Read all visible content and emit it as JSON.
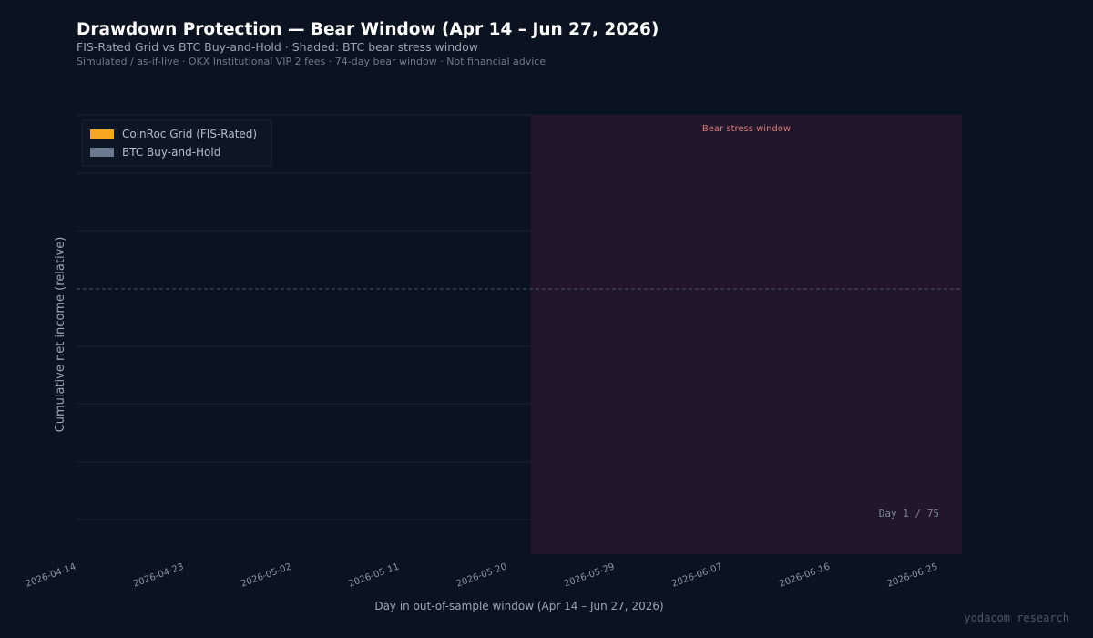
{
  "header": {
    "title": "Drawdown Protection — Bear Window  (Apr 14 – Jun 27, 2026)",
    "subtitle": "FIS-Rated Grid vs BTC Buy-and-Hold  ·  Shaded: BTC bear stress window",
    "note": "Simulated / as-if-live  ·  OKX Institutional VIP 2 fees  ·  74-day bear window  ·  Not financial advice"
  },
  "watermark": "yodacom research",
  "chart_data": {
    "type": "line",
    "xlabel": "Day in out-of-sample window  (Apr 14 – Jun 27, 2026)",
    "ylabel": "Cumulative net income (relative)",
    "x_ticks": [
      "2026-04-14",
      "2026-04-23",
      "2026-05-02",
      "2026-05-11",
      "2026-05-20",
      "2026-05-29",
      "2026-06-07",
      "2026-06-16",
      "2026-06-25"
    ],
    "xlim": [
      "2026-04-14",
      "2026-06-27"
    ],
    "grid": true,
    "zero_line": "dashed",
    "legend_position": "top-left",
    "series": [
      {
        "name": "CoinRoc Grid (FIS-Rated)",
        "color": "#f5a623",
        "values": []
      },
      {
        "name": "BTC Buy-and-Hold",
        "color": "#6b7a8f",
        "values": []
      }
    ],
    "shaded_region": {
      "label": "Bear stress window",
      "start": "2026-05-24",
      "end": "2026-06-27",
      "fill_color": "#22172a",
      "label_color": "#d9787a"
    },
    "day_counter": "Day 1 / 75",
    "colors": {
      "background": "#0b1220",
      "plot_background": "#0b1320",
      "grid": "#162131",
      "zero_line": "#4a5566",
      "text": "#9aa5b5"
    }
  }
}
